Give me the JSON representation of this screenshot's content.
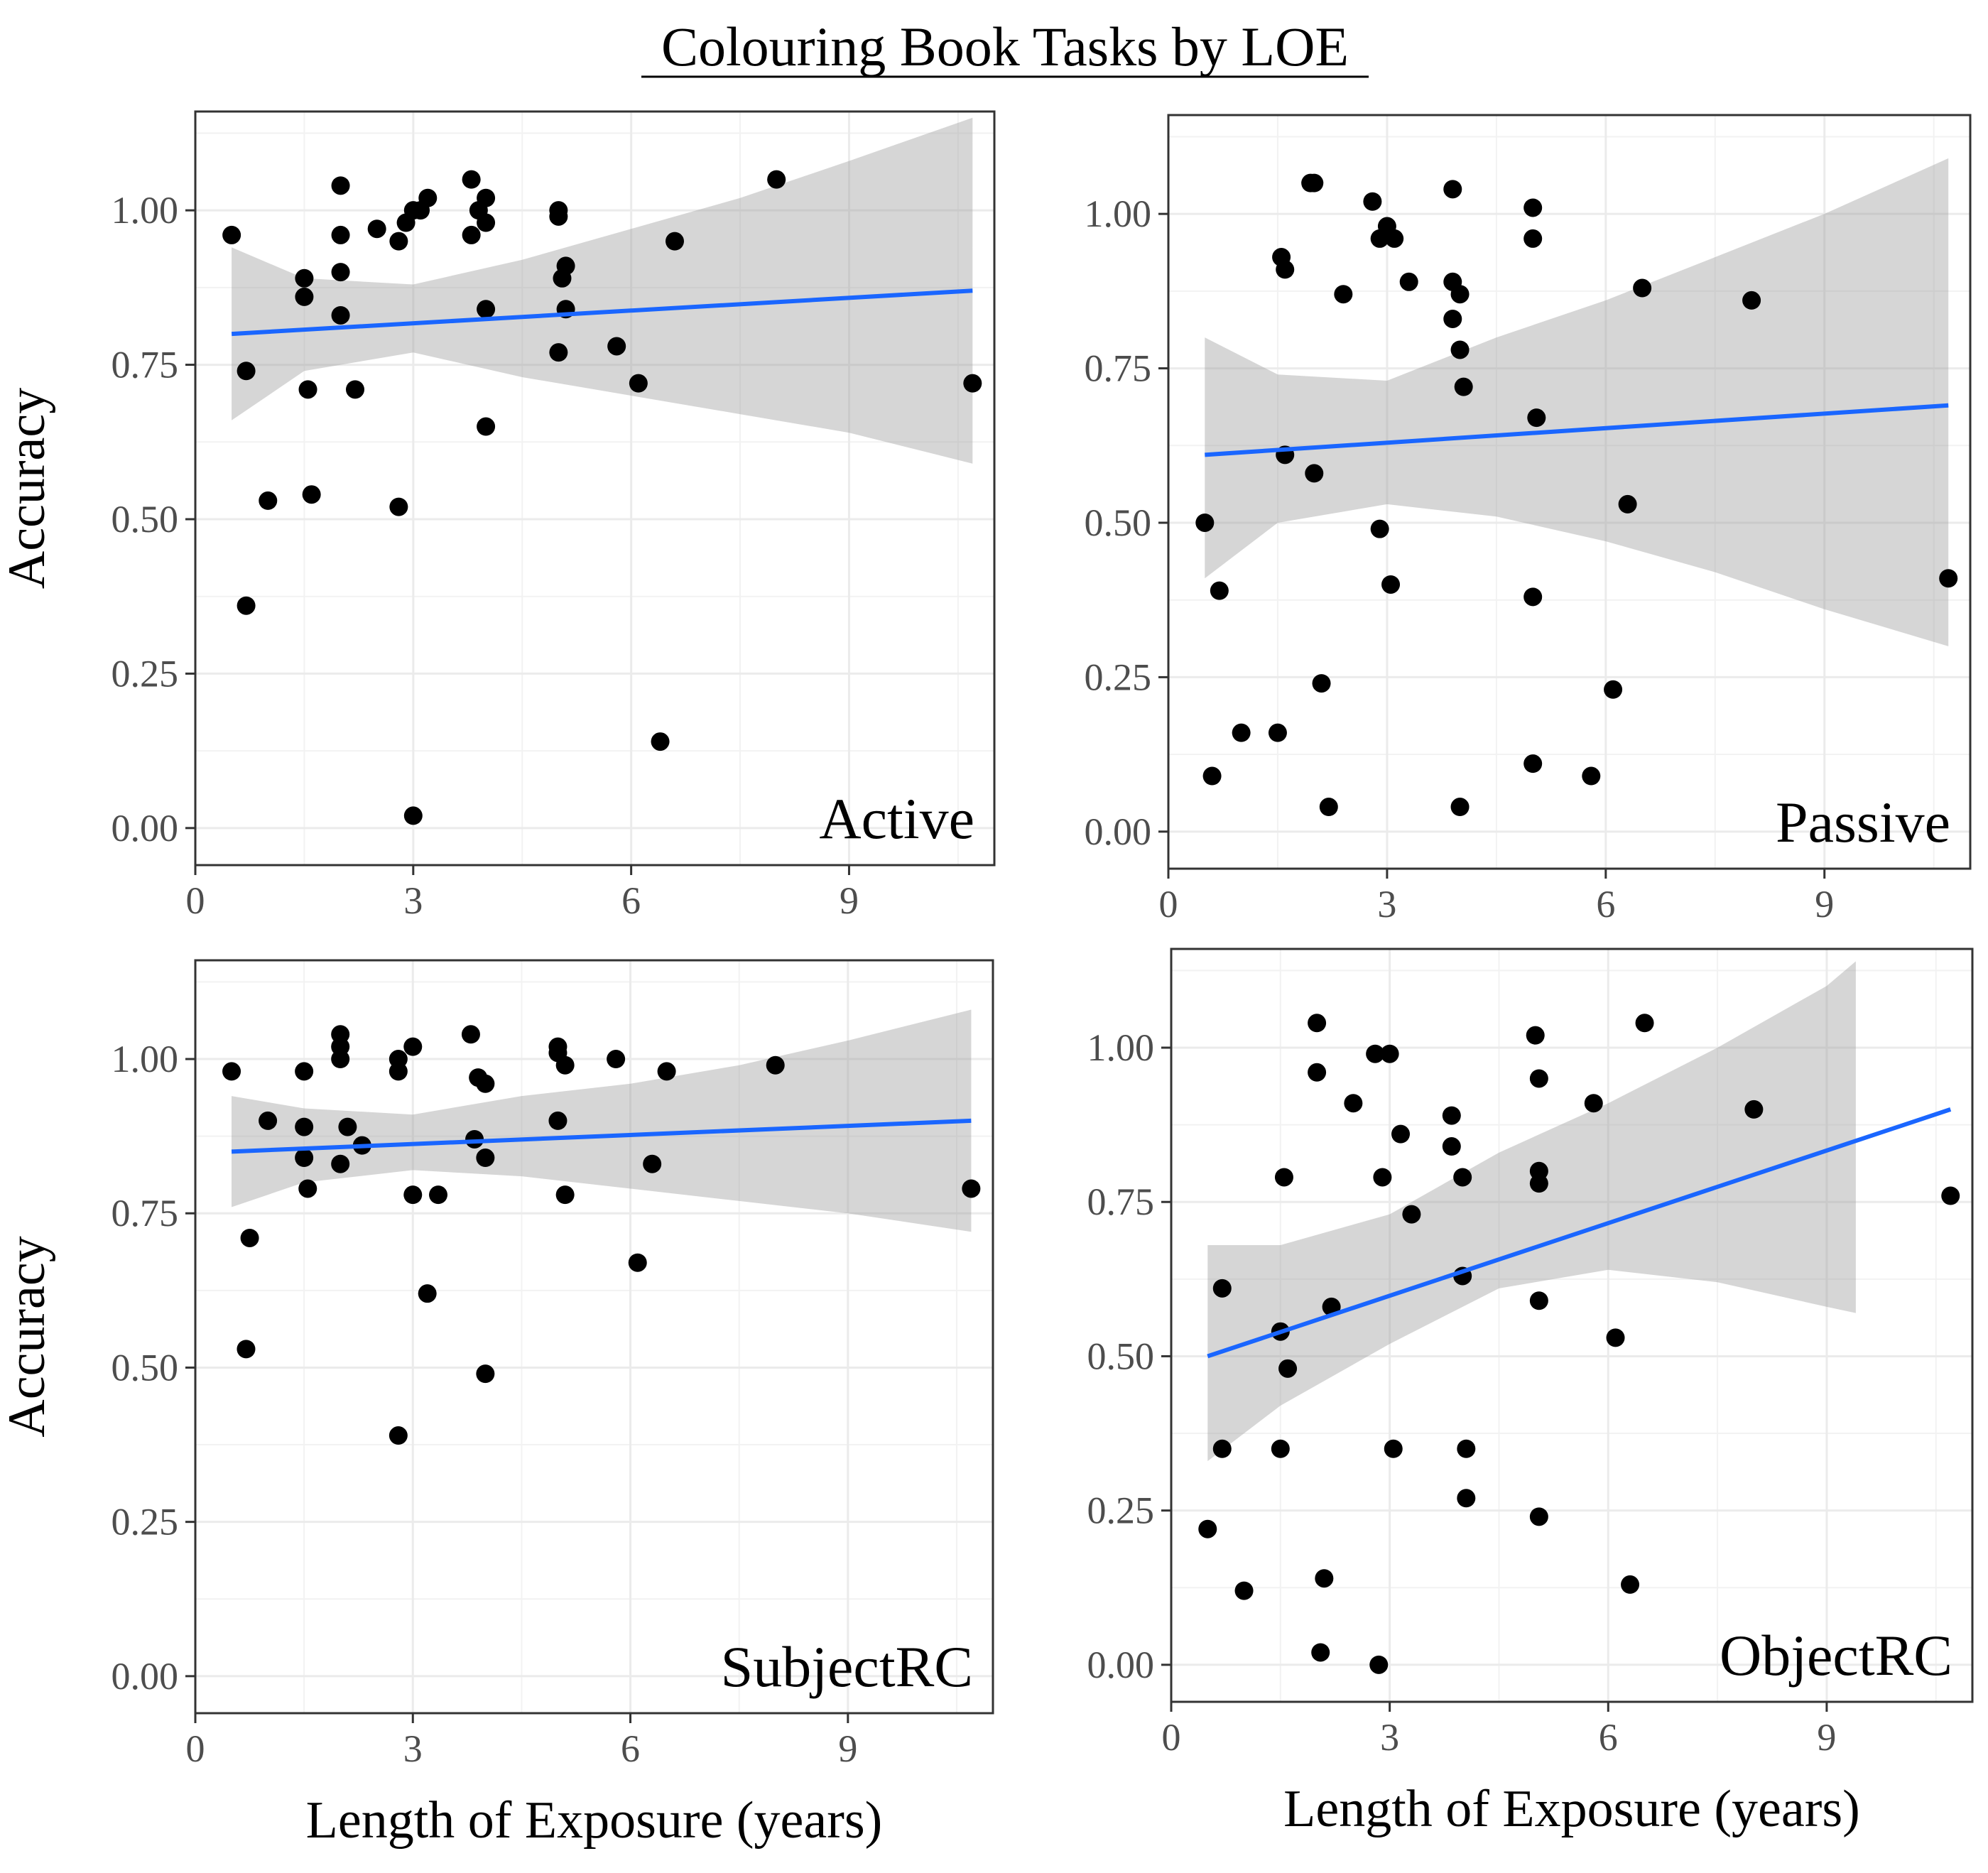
{
  "figure_title": "Colouring Book Tasks by LOE",
  "chart_data": [
    {
      "type": "scatter",
      "label": "Active",
      "xlabel": "",
      "ylabel": "Accuracy",
      "xlim": [
        0,
        11
      ],
      "ylim": [
        -0.06,
        1.16
      ],
      "xticks": [
        "0",
        "3",
        "6",
        "9"
      ],
      "yticks": [
        "0.00",
        "0.25",
        "0.50",
        "0.75",
        "1.00"
      ],
      "grid": true,
      "points": [
        [
          0.5,
          0.96
        ],
        [
          0.7,
          0.74
        ],
        [
          0.7,
          0.36
        ],
        [
          1.0,
          0.53
        ],
        [
          1.5,
          0.89
        ],
        [
          1.5,
          0.86
        ],
        [
          1.55,
          0.71
        ],
        [
          1.6,
          0.54
        ],
        [
          2.0,
          1.04
        ],
        [
          2.0,
          0.96
        ],
        [
          2.0,
          0.9
        ],
        [
          2.0,
          0.83
        ],
        [
          2.2,
          0.71
        ],
        [
          2.5,
          0.97
        ],
        [
          2.8,
          0.95
        ],
        [
          2.8,
          0.52
        ],
        [
          2.9,
          0.98
        ],
        [
          3.0,
          1.0
        ],
        [
          3.0,
          0.02
        ],
        [
          3.1,
          1.0
        ],
        [
          3.2,
          1.02
        ],
        [
          3.8,
          1.05
        ],
        [
          3.8,
          0.96
        ],
        [
          3.9,
          1.0
        ],
        [
          4.0,
          1.02
        ],
        [
          4.0,
          0.98
        ],
        [
          4.0,
          0.84
        ],
        [
          4.0,
          0.65
        ],
        [
          5.0,
          1.0
        ],
        [
          5.0,
          0.99
        ],
        [
          5.0,
          0.77
        ],
        [
          5.05,
          0.89
        ],
        [
          5.1,
          0.91
        ],
        [
          5.1,
          0.84
        ],
        [
          5.8,
          0.78
        ],
        [
          6.1,
          0.72
        ],
        [
          6.4,
          0.14
        ],
        [
          6.6,
          0.95
        ],
        [
          8.0,
          1.05
        ],
        [
          10.7,
          0.72
        ]
      ],
      "trend": {
        "x": [
          0.5,
          10.7
        ],
        "y": [
          0.8,
          0.87
        ]
      },
      "ci": {
        "x": [
          0.5,
          1.5,
          3.0,
          4.5,
          6.0,
          7.5,
          9.0,
          10.7
        ],
        "lower": [
          0.66,
          0.74,
          0.77,
          0.73,
          0.7,
          0.67,
          0.64,
          0.59
        ],
        "upper": [
          0.94,
          0.89,
          0.88,
          0.92,
          0.97,
          1.02,
          1.08,
          1.15
        ]
      }
    },
    {
      "type": "scatter",
      "label": "Passive",
      "xlabel": "",
      "ylabel": "",
      "xlim": [
        0,
        11
      ],
      "ylim": [
        -0.06,
        1.16
      ],
      "xticks": [
        "0",
        "3",
        "6",
        "9"
      ],
      "yticks": [
        "0.00",
        "0.25",
        "0.50",
        "0.75",
        "1.00"
      ],
      "grid": true,
      "points": [
        [
          0.5,
          0.5
        ],
        [
          0.6,
          0.09
        ],
        [
          0.7,
          0.39
        ],
        [
          1.0,
          0.16
        ],
        [
          1.5,
          0.16
        ],
        [
          1.55,
          0.93
        ],
        [
          1.6,
          0.91
        ],
        [
          1.6,
          0.61
        ],
        [
          1.95,
          1.05
        ],
        [
          2.0,
          1.05
        ],
        [
          2.0,
          0.58
        ],
        [
          2.1,
          0.24
        ],
        [
          2.2,
          0.04
        ],
        [
          2.4,
          0.87
        ],
        [
          2.8,
          1.02
        ],
        [
          2.9,
          0.96
        ],
        [
          2.9,
          0.49
        ],
        [
          3.0,
          0.98
        ],
        [
          3.05,
          0.4
        ],
        [
          3.1,
          0.96
        ],
        [
          3.3,
          0.89
        ],
        [
          3.9,
          1.04
        ],
        [
          3.9,
          0.89
        ],
        [
          3.9,
          0.83
        ],
        [
          4.0,
          0.87
        ],
        [
          4.0,
          0.78
        ],
        [
          4.05,
          0.72
        ],
        [
          4.0,
          0.04
        ],
        [
          5.0,
          1.01
        ],
        [
          5.0,
          0.96
        ],
        [
          5.0,
          0.38
        ],
        [
          5.0,
          0.11
        ],
        [
          5.05,
          0.67
        ],
        [
          5.8,
          0.09
        ],
        [
          6.1,
          0.23
        ],
        [
          6.3,
          0.53
        ],
        [
          6.5,
          0.88
        ],
        [
          8.0,
          0.86
        ],
        [
          10.7,
          0.41
        ]
      ],
      "trend": {
        "x": [
          0.5,
          10.7
        ],
        "y": [
          0.61,
          0.69
        ]
      },
      "ci": {
        "x": [
          0.5,
          1.5,
          3.0,
          4.5,
          6.0,
          7.5,
          9.0,
          10.7
        ],
        "lower": [
          0.41,
          0.5,
          0.53,
          0.51,
          0.47,
          0.42,
          0.36,
          0.3
        ],
        "upper": [
          0.8,
          0.74,
          0.73,
          0.8,
          0.86,
          0.93,
          1.0,
          1.09
        ]
      }
    },
    {
      "type": "scatter",
      "label": "SubjectRC",
      "xlabel": "Length of Exposure (years)",
      "ylabel": "Accuracy",
      "xlim": [
        0,
        11
      ],
      "ylim": [
        -0.06,
        1.16
      ],
      "xticks": [
        "0",
        "3",
        "6",
        "9"
      ],
      "yticks": [
        "0.00",
        "0.25",
        "0.50",
        "0.75",
        "1.00"
      ],
      "grid": true,
      "points": [
        [
          0.5,
          0.98
        ],
        [
          0.7,
          0.53
        ],
        [
          0.75,
          0.71
        ],
        [
          1.0,
          0.9
        ],
        [
          1.5,
          0.98
        ],
        [
          1.5,
          0.89
        ],
        [
          1.5,
          0.84
        ],
        [
          1.55,
          0.79
        ],
        [
          2.0,
          1.04
        ],
        [
          2.0,
          1.02
        ],
        [
          2.0,
          1.0
        ],
        [
          2.0,
          0.83
        ],
        [
          2.1,
          0.89
        ],
        [
          2.3,
          0.86
        ],
        [
          2.8,
          1.0
        ],
        [
          2.8,
          0.98
        ],
        [
          2.8,
          0.39
        ],
        [
          3.0,
          1.02
        ],
        [
          3.0,
          0.78
        ],
        [
          3.2,
          0.62
        ],
        [
          3.35,
          0.78
        ],
        [
          3.8,
          1.04
        ],
        [
          3.85,
          0.87
        ],
        [
          3.9,
          0.97
        ],
        [
          4.0,
          0.96
        ],
        [
          4.0,
          0.84
        ],
        [
          4.0,
          0.49
        ],
        [
          5.0,
          1.02
        ],
        [
          5.0,
          1.01
        ],
        [
          5.0,
          0.9
        ],
        [
          5.1,
          0.99
        ],
        [
          5.1,
          0.78
        ],
        [
          5.8,
          1.0
        ],
        [
          6.1,
          0.67
        ],
        [
          6.3,
          0.83
        ],
        [
          6.5,
          0.98
        ],
        [
          8.0,
          0.99
        ],
        [
          10.7,
          0.79
        ]
      ],
      "trend": {
        "x": [
          0.5,
          10.7
        ],
        "y": [
          0.85,
          0.9
        ]
      },
      "ci": {
        "x": [
          0.5,
          1.5,
          3.0,
          4.5,
          6.0,
          7.5,
          9.0,
          10.7
        ],
        "lower": [
          0.76,
          0.8,
          0.82,
          0.81,
          0.79,
          0.77,
          0.75,
          0.72
        ],
        "upper": [
          0.94,
          0.92,
          0.91,
          0.94,
          0.96,
          0.99,
          1.03,
          1.08
        ]
      }
    },
    {
      "type": "scatter",
      "label": "ObjectRC",
      "xlabel": "Length of Exposure (years)",
      "ylabel": "",
      "xlim": [
        0,
        11
      ],
      "ylim": [
        -0.06,
        1.16
      ],
      "xticks": [
        "0",
        "3",
        "6",
        "9"
      ],
      "yticks": [
        "0.00",
        "0.25",
        "0.50",
        "0.75",
        "1.00"
      ],
      "grid": true,
      "points": [
        [
          0.5,
          0.22
        ],
        [
          0.7,
          0.61
        ],
        [
          0.7,
          0.35
        ],
        [
          1.0,
          0.12
        ],
        [
          1.5,
          0.54
        ],
        [
          1.5,
          0.35
        ],
        [
          1.55,
          0.79
        ],
        [
          1.6,
          0.48
        ],
        [
          2.0,
          1.04
        ],
        [
          2.0,
          0.96
        ],
        [
          2.05,
          0.02
        ],
        [
          2.1,
          0.14
        ],
        [
          2.2,
          0.58
        ],
        [
          2.5,
          0.91
        ],
        [
          2.8,
          0.99
        ],
        [
          2.9,
          0.79
        ],
        [
          2.85,
          0.0
        ],
        [
          3.0,
          0.99
        ],
        [
          3.05,
          0.35
        ],
        [
          3.15,
          0.86
        ],
        [
          3.3,
          0.73
        ],
        [
          3.85,
          0.89
        ],
        [
          3.85,
          0.84
        ],
        [
          4.0,
          0.79
        ],
        [
          4.0,
          0.63
        ],
        [
          4.05,
          0.35
        ],
        [
          4.05,
          0.27
        ],
        [
          5.0,
          1.02
        ],
        [
          5.05,
          0.95
        ],
        [
          5.05,
          0.8
        ],
        [
          5.05,
          0.78
        ],
        [
          5.05,
          0.59
        ],
        [
          5.05,
          0.24
        ],
        [
          5.8,
          0.91
        ],
        [
          6.1,
          0.53
        ],
        [
          6.3,
          0.13
        ],
        [
          6.5,
          1.04
        ],
        [
          8.0,
          0.9
        ],
        [
          10.7,
          0.76
        ]
      ],
      "trend": {
        "x": [
          0.5,
          10.7
        ],
        "y": [
          0.5,
          0.9
        ]
      },
      "ci": {
        "x": [
          0.5,
          1.5,
          3.0,
          4.5,
          6.0,
          7.5,
          9.0,
          9.4
        ],
        "lower": [
          0.33,
          0.42,
          0.52,
          0.61,
          0.64,
          0.62,
          0.58,
          0.57
        ],
        "upper": [
          0.68,
          0.68,
          0.73,
          0.83,
          0.91,
          1.0,
          1.1,
          1.14
        ]
      }
    }
  ]
}
